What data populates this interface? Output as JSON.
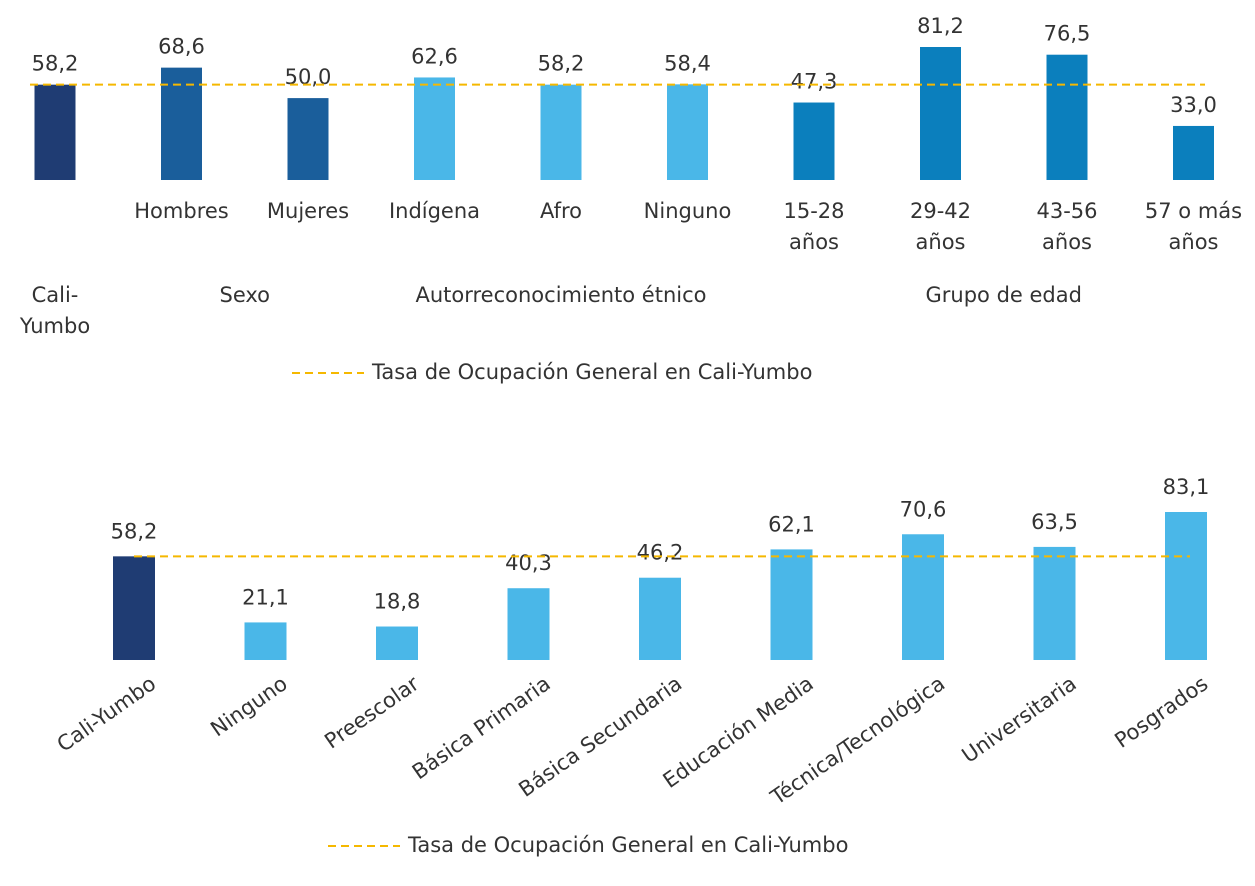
{
  "chart_data": [
    {
      "type": "grouped-bar",
      "groups": [
        {
          "label": "Cali-Yumbo",
          "color": "#1f3c73",
          "categories": [
            null
          ],
          "values": [
            58.2
          ],
          "value_labels": [
            "58,2"
          ]
        },
        {
          "label": "Sexo",
          "color": "#1a5e9b",
          "categories": [
            "Hombres",
            "Mujeres"
          ],
          "values": [
            68.6,
            50.0
          ],
          "value_labels": [
            "68,6",
            "50,0"
          ]
        },
        {
          "label": "Autorreconocimiento étnico",
          "color": "#4ab7e8",
          "categories": [
            "Indígena",
            "Afro",
            "Ninguno"
          ],
          "values": [
            62.6,
            58.2,
            58.4
          ],
          "value_labels": [
            "62,6",
            "58,2",
            "58,4"
          ]
        },
        {
          "label": "Grupo de edad",
          "color": "#0b7fbd",
          "categories": [
            "15-28 años",
            "29-42 años",
            "43-56 años",
            "57 o más años"
          ],
          "values": [
            47.3,
            81.2,
            76.5,
            33.0
          ],
          "value_labels": [
            "47,3",
            "81,2",
            "76,5",
            "33,0"
          ]
        }
      ],
      "reference_line": {
        "value": 58.2,
        "label": "Tasa de Ocupación General en Cali-Yumbo",
        "color": "#f5b800"
      }
    },
    {
      "type": "bar",
      "categories": [
        "Cali-Yumbo",
        "Ninguno",
        "Preescolar",
        "Básica Primaria",
        "Básica Secundaria",
        "Educación Media",
        "Técnica/Tecnológica",
        "Universitaria",
        "Posgrados"
      ],
      "values": [
        58.2,
        21.1,
        18.8,
        40.3,
        46.2,
        62.1,
        70.6,
        63.5,
        83.1
      ],
      "value_labels": [
        "58,2",
        "21,1",
        "18,8",
        "40,3",
        "46,2",
        "62,1",
        "70,6",
        "63,5",
        "83,1"
      ],
      "colors": [
        "#1f3c73",
        "#4ab7e8",
        "#4ab7e8",
        "#4ab7e8",
        "#4ab7e8",
        "#4ab7e8",
        "#4ab7e8",
        "#4ab7e8",
        "#4ab7e8"
      ],
      "reference_line": {
        "value": 58.2,
        "label": "Tasa de Ocupación General en Cali-Yumbo",
        "color": "#f5b800"
      }
    }
  ]
}
